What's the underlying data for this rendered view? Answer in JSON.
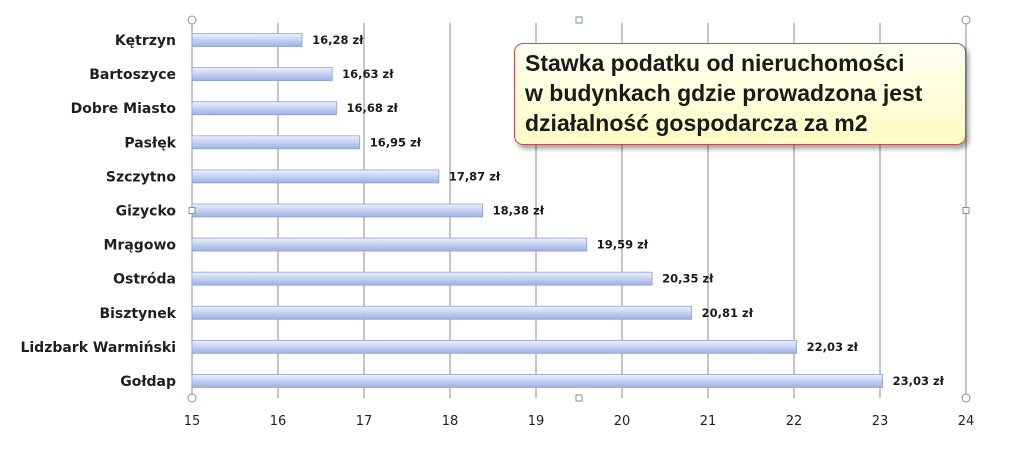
{
  "chart_data": {
    "type": "bar",
    "orientation": "horizontal",
    "title": "Stawka podatku od nieruchomości w budynkach gdzie prowadzona jest działalność gospodarcza za m2",
    "title_lines": [
      "Stawka podatku od nieruchomości",
      "w budynkach gdzie prowadzona jest",
      "działalność gospodarcza za m2"
    ],
    "categories": [
      "Kętrzyn",
      "Bartoszyce",
      "Dobre Miasto",
      "Pasłęk",
      "Szczytno",
      "Gizycko",
      "Mrągowo",
      "Ostróda",
      "Bisztynek",
      "Lidzbark Warmiński",
      "Gołdap"
    ],
    "values": [
      16.28,
      16.63,
      16.68,
      16.95,
      17.87,
      18.38,
      19.59,
      20.35,
      20.81,
      22.03,
      23.03
    ],
    "value_labels": [
      "16,28 zł",
      "16,63 zł",
      "16,68 zł",
      "16,95 zł",
      "17,87 zł",
      "18,38 zł",
      "19,59 zł",
      "20,35 zł",
      "20,81 zł",
      "22,03 zł",
      "23,03 zł"
    ],
    "xlim": [
      15,
      24
    ],
    "xticks": [
      "15",
      "16",
      "17",
      "18",
      "19",
      "20",
      "21",
      "22",
      "23",
      "24"
    ],
    "xlabel": "",
    "ylabel": "",
    "grid": true,
    "legend": false,
    "colors": {
      "bar_fill_top": "#e9eefc",
      "bar_fill_bottom": "#aebde8",
      "bar_border": "#8ea2d6",
      "grid": "#8c8c8c",
      "title_border": "#c0504d",
      "title_bg": "#fdfbc4"
    }
  }
}
